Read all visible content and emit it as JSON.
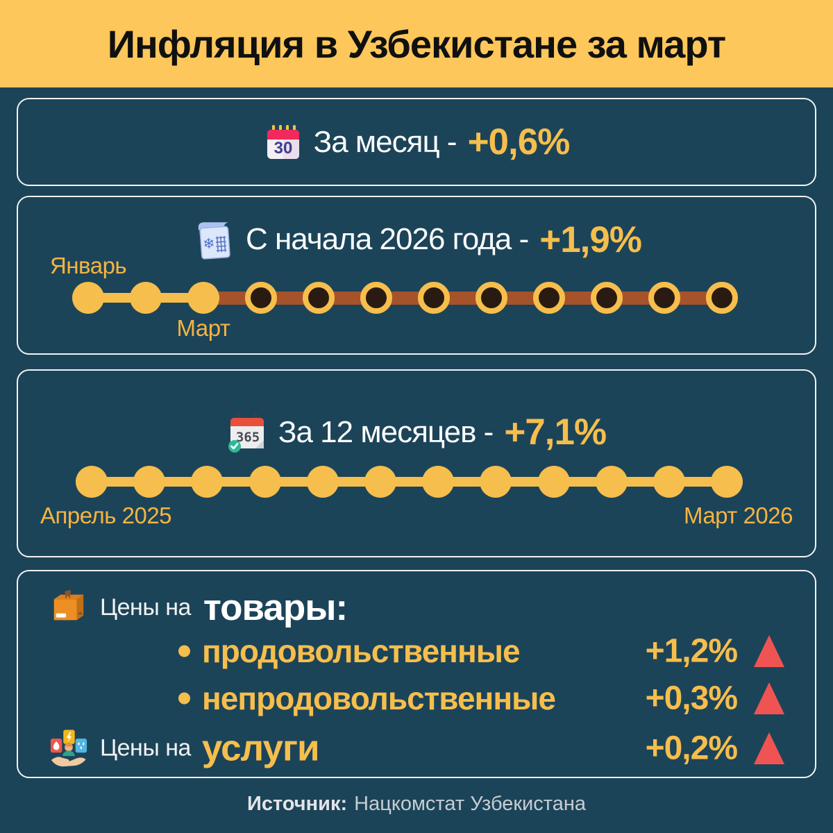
{
  "header": {
    "title": "Инфляция в Узбекистане за март"
  },
  "cards": {
    "month": {
      "icon": "calendar-30-icon",
      "icon_glyph": "30",
      "label": "За месяц -",
      "value": "+0,6%"
    },
    "ytd": {
      "icon": "calendar-winter-icon",
      "icon_glyph": "❄",
      "label": "С начала 2026 года -",
      "value": "+1,9%",
      "start_label": "Январь",
      "current_label": "Март",
      "months_total": 12,
      "months_elapsed": 3
    },
    "year": {
      "icon": "calendar-365-icon",
      "icon_glyph": "365",
      "label": "За 12 месяцев -",
      "value": "+7,1%",
      "start_label": "Апрель 2025",
      "end_label": "Март 2026",
      "months_total": 12
    },
    "prices": {
      "goods_icon": "box-icon",
      "goods_prefix": "Цены на",
      "goods_word": "товары:",
      "items": [
        {
          "label": "продовольственные",
          "value": "+1,2%",
          "direction": "up"
        },
        {
          "label": "непродовольственные",
          "value": "+0,3%",
          "direction": "up"
        }
      ],
      "services_icon": "utilities-hand-icon",
      "services_prefix": "Цены на",
      "services_word": "услуги",
      "services_value": "+0,2%",
      "services_direction": "up"
    }
  },
  "footer": {
    "source_label": "Источник:",
    "source_value": "Нацкомстат Узбекистана"
  },
  "colors": {
    "background": "#1C4459",
    "banner_yellow": "#FDC75B",
    "accent_yellow": "#F6BE4C",
    "label_yellow": "#F5B441",
    "timeline_brown": "#A6532B",
    "dot_dark": "#2A1B12",
    "triangle_red": "#F05452",
    "title_black": "#101010"
  },
  "chart_data": {
    "type": "table",
    "title": "Инфляция в Узбекистане за март",
    "rows": [
      {
        "label": "За месяц",
        "value_pct": 0.6
      },
      {
        "label": "С начала 2026 года",
        "value_pct": 1.9,
        "period_start": "Январь",
        "period_current": "Март",
        "months_elapsed": 3,
        "months_total": 12
      },
      {
        "label": "За 12 месяцев",
        "value_pct": 7.1,
        "period_start": "Апрель 2025",
        "period_end": "Март 2026",
        "months_total": 12
      },
      {
        "label": "Цены на товары: продовольственные",
        "value_pct": 1.2,
        "direction": "up"
      },
      {
        "label": "Цены на товары: непродовольственные",
        "value_pct": 0.3,
        "direction": "up"
      },
      {
        "label": "Цены на услуги",
        "value_pct": 0.2,
        "direction": "up"
      }
    ],
    "source": "Нацкомстат Узбекистана"
  }
}
